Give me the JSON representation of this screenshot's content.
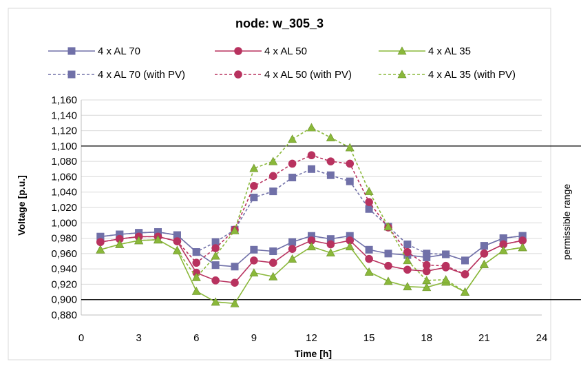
{
  "chart_data": {
    "type": "line",
    "title": "node: w_305_3",
    "xlabel": "Time [h]",
    "ylabel": "Voltage [p.u.]",
    "xlim": [
      0,
      24
    ],
    "ylim": [
      0.88,
      1.16
    ],
    "x_ticks": [
      "0",
      "3",
      "6",
      "9",
      "12",
      "15",
      "18",
      "21",
      "24"
    ],
    "y_ticks": [
      "0,880",
      "0,900",
      "0,920",
      "0,940",
      "0,960",
      "0,980",
      "1,000",
      "1,020",
      "1,040",
      "1,060",
      "1,080",
      "1,100",
      "1,120",
      "1,140",
      "1,160"
    ],
    "grid": true,
    "legend_position": "top",
    "limits": [
      0.9,
      1.1
    ],
    "annotation": "permissible range",
    "x": [
      1,
      2,
      3,
      4,
      5,
      6,
      7,
      8,
      9,
      10,
      11,
      12,
      13,
      14,
      15,
      16,
      17,
      18,
      19,
      20,
      21,
      22,
      23
    ],
    "series": [
      {
        "name": "4 x AL 70",
        "color": "#7070a8",
        "marker": "square",
        "dash": "solid",
        "values": [
          0.982,
          0.985,
          0.987,
          0.988,
          0.984,
          0.962,
          0.945,
          0.943,
          0.965,
          0.963,
          0.975,
          0.983,
          0.979,
          0.983,
          0.965,
          0.96,
          0.958,
          0.955,
          0.959,
          0.951,
          0.97,
          0.98,
          0.983
        ]
      },
      {
        "name": "4 x AL 50",
        "color": "#b8325f",
        "marker": "circle",
        "dash": "solid",
        "values": [
          0.975,
          0.979,
          0.982,
          0.982,
          0.976,
          0.935,
          0.925,
          0.922,
          0.951,
          0.948,
          0.966,
          0.977,
          0.972,
          0.977,
          0.953,
          0.944,
          0.939,
          0.937,
          0.942,
          0.933,
          0.96,
          0.972,
          0.977
        ]
      },
      {
        "name": "4 x AL 35",
        "color": "#8ab83a",
        "marker": "triangle",
        "dash": "solid",
        "values": [
          0.965,
          0.972,
          0.977,
          0.978,
          0.964,
          0.911,
          0.897,
          0.895,
          0.935,
          0.93,
          0.953,
          0.969,
          0.961,
          0.969,
          0.936,
          0.924,
          0.917,
          0.916,
          0.923,
          0.91,
          0.946,
          0.964,
          0.968
        ]
      },
      {
        "name": "4 x AL 70 (with PV)",
        "color": "#7070a8",
        "marker": "square",
        "dash": "dashed",
        "values": [
          0.982,
          0.985,
          0.987,
          0.988,
          0.984,
          0.962,
          0.975,
          0.991,
          1.033,
          1.041,
          1.059,
          1.07,
          1.062,
          1.054,
          1.018,
          0.995,
          0.972,
          0.96,
          0.959,
          0.951,
          0.97,
          0.98,
          0.983
        ]
      },
      {
        "name": "4 x AL 50 (with PV)",
        "color": "#b8325f",
        "marker": "circle",
        "dash": "dashed",
        "values": [
          0.975,
          0.979,
          0.982,
          0.982,
          0.976,
          0.948,
          0.967,
          0.991,
          1.048,
          1.061,
          1.077,
          1.088,
          1.08,
          1.077,
          1.027,
          0.994,
          0.962,
          0.945,
          0.944,
          0.933,
          0.96,
          0.972,
          0.977
        ]
      },
      {
        "name": "4 x AL 35 (with PV)",
        "color": "#8ab83a",
        "marker": "triangle",
        "dash": "dashed",
        "values": [
          0.965,
          0.972,
          0.977,
          0.978,
          0.964,
          0.929,
          0.957,
          0.99,
          1.071,
          1.08,
          1.109,
          1.124,
          1.111,
          1.098,
          1.041,
          0.995,
          0.951,
          0.925,
          0.926,
          0.91,
          0.946,
          0.964,
          0.968
        ]
      }
    ]
  }
}
